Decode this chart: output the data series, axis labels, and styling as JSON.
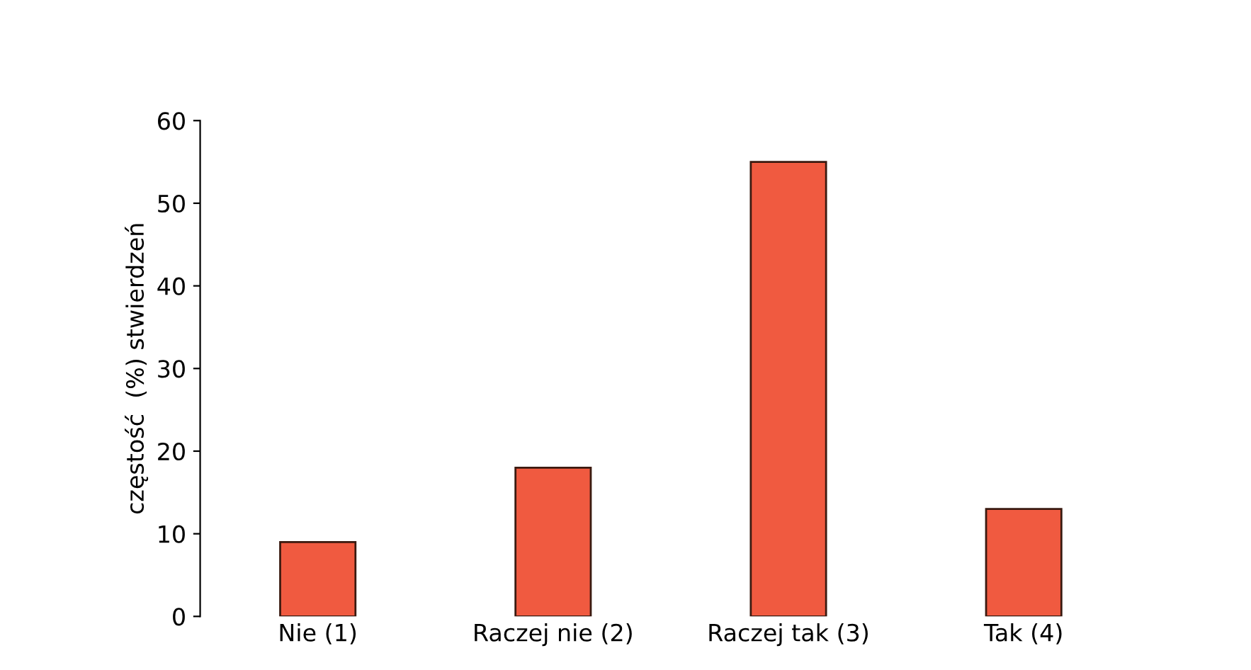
{
  "chart_data": {
    "type": "bar",
    "ylabel": "częstość  (%) stwierdzeń",
    "categories": [
      "Nie (1)",
      "Raczej nie (2)",
      "Raczej tak (3)",
      "Tak (4)"
    ],
    "values": [
      9,
      18,
      55,
      13
    ],
    "color": "#f05a40",
    "ylim": [
      0,
      60
    ],
    "yticks": [
      0,
      10,
      20,
      30,
      40,
      50,
      60
    ],
    "grid": false
  }
}
